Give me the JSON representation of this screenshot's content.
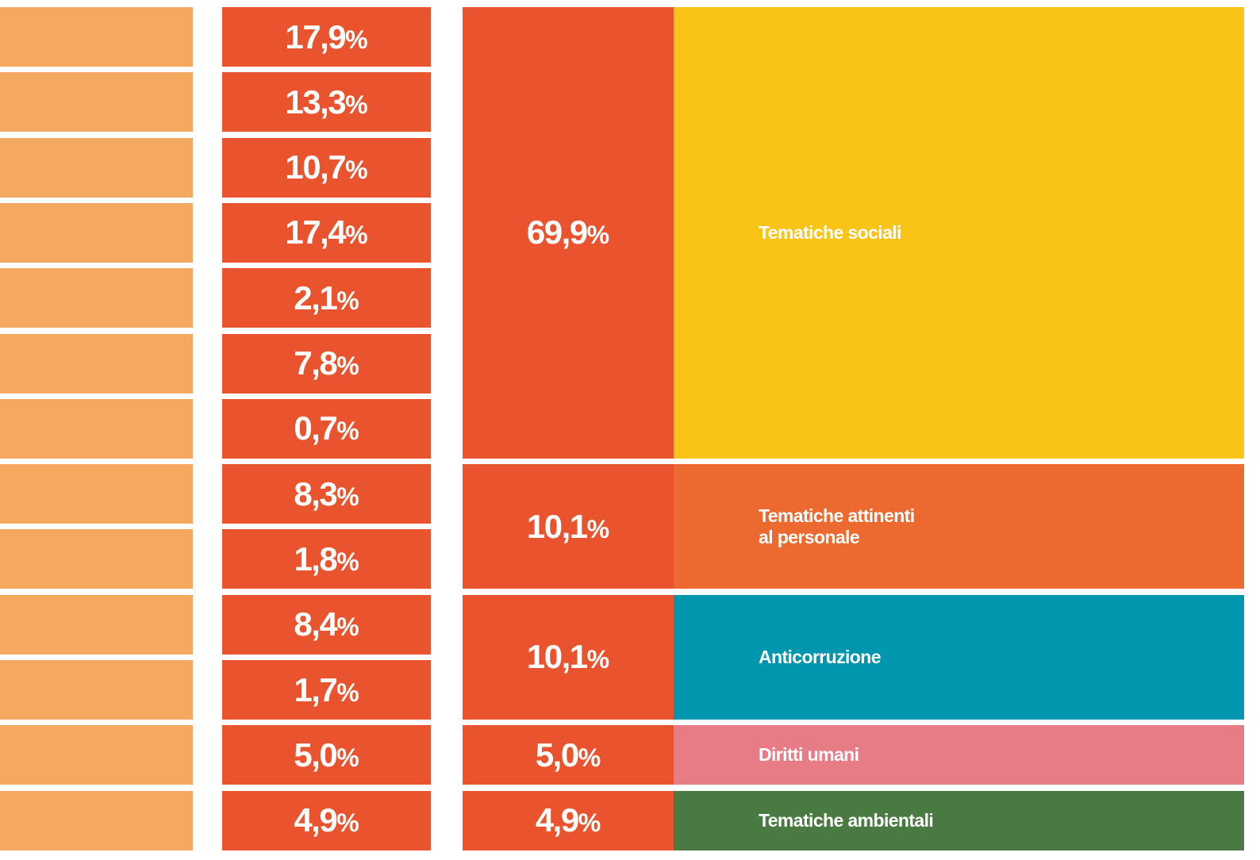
{
  "groups": [
    {
      "total": "69,9%",
      "label": [
        "Tematiche sociali"
      ],
      "color": "#f9c416",
      "items": [
        "17,9%",
        "13,3%",
        "10,7%",
        "17,4%",
        "2,1%",
        "7,8%",
        "0,7%"
      ]
    },
    {
      "total": "10,1%",
      "label": [
        "Tematiche attinenti",
        "al personale"
      ],
      "color": "#ec6a30",
      "items": [
        "8,3%",
        "1,8%"
      ]
    },
    {
      "total": "10,1%",
      "label": [
        "Anticorruzione"
      ],
      "color": "#0096ad",
      "items": [
        "8,4%",
        "1,7%"
      ]
    },
    {
      "total": "5,0%",
      "label": [
        "Diritti umani"
      ],
      "color": "#e77c86",
      "items": [
        "5,0%"
      ]
    },
    {
      "total": "4,9%",
      "label": [
        "Tematiche ambientali"
      ],
      "color": "#487a41",
      "items": [
        "4,9%"
      ]
    }
  ]
}
